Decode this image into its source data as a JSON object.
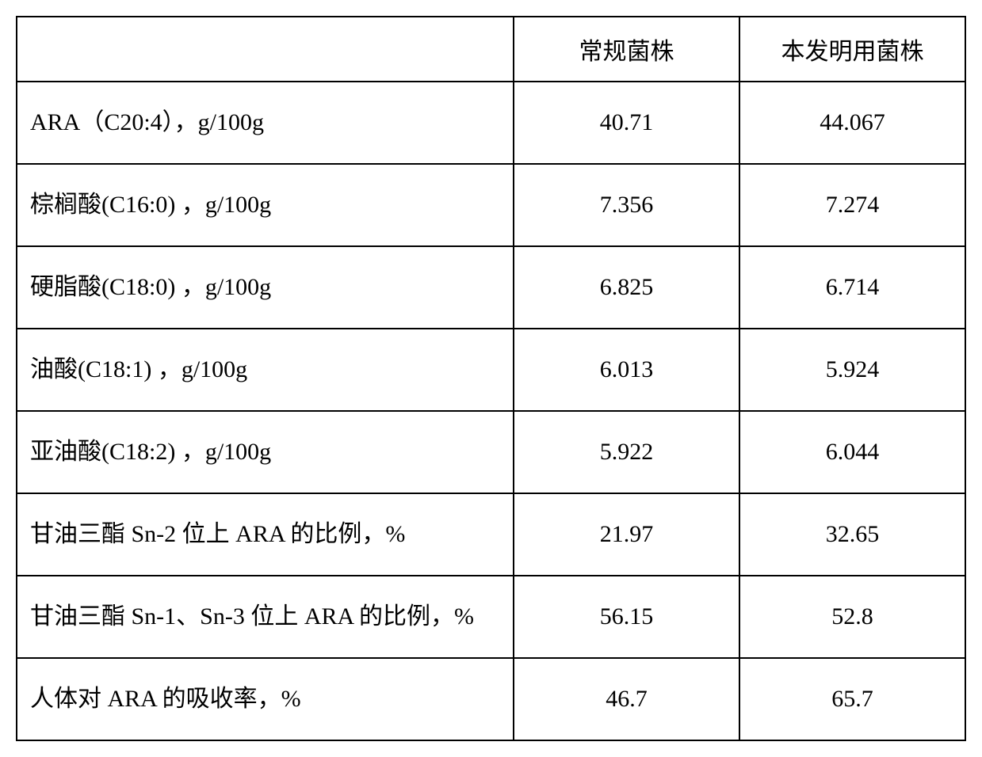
{
  "table": {
    "headers": {
      "col0": "",
      "col1": "常规菌株",
      "col2": "本发明用菌株"
    },
    "rows": [
      {
        "label": "ARA（C20:4），g/100g",
        "val1": "40.71",
        "val2": "44.067"
      },
      {
        "label": "棕榈酸(C16:0) ，g/100g",
        "val1": "7.356",
        "val2": "7.274"
      },
      {
        "label": "硬脂酸(C18:0) ，g/100g",
        "val1": "6.825",
        "val2": "6.714"
      },
      {
        "label": "油酸(C18:1) ，g/100g",
        "val1": "6.013",
        "val2": "5.924"
      },
      {
        "label": "亚油酸(C18:2) ，g/100g",
        "val1": "5.922",
        "val2": "6.044"
      },
      {
        "label": "甘油三酯 Sn-2 位上 ARA 的比例，%",
        "val1": "21.97",
        "val2": "32.65"
      },
      {
        "label": "甘油三酯 Sn-1、Sn-3 位上 ARA 的比例，%",
        "val1": "56.15",
        "val2": "52.8"
      },
      {
        "label": "人体对 ARA 的吸收率，%",
        "val1": "46.7",
        "val2": "65.7"
      }
    ],
    "styles": {
      "border_color": "#000000",
      "border_width": 2,
      "background_color": "#ffffff",
      "text_color": "#000000",
      "font_size": 30,
      "cell_padding": 18
    }
  }
}
